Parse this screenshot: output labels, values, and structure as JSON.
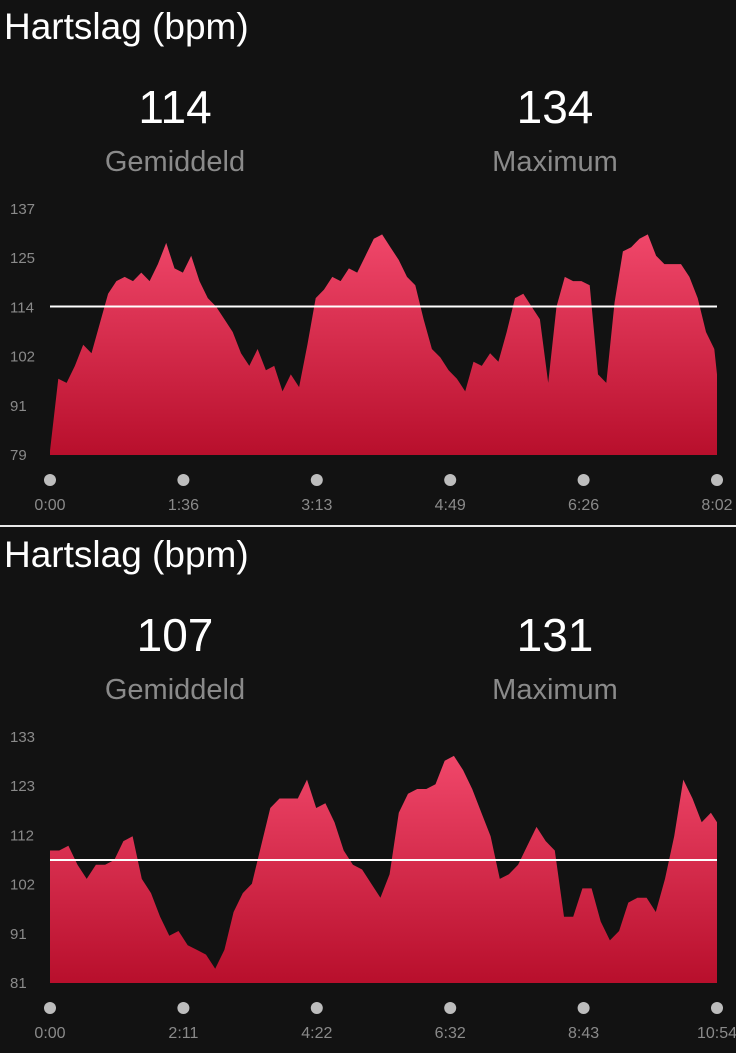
{
  "colors": {
    "fill_top": "#f0476a",
    "fill_bottom": "#b80f2c",
    "average_line": "#ffffff",
    "tick_text": "#8a8a8a",
    "marker": "#bdbdbd"
  },
  "panels": [
    {
      "title": "Hartslag (bpm)",
      "average": {
        "value": "114",
        "label": "Gemiddeld"
      },
      "maximum": {
        "value": "134",
        "label": "Maximum"
      }
    },
    {
      "title": "Hartslag (bpm)",
      "average": {
        "value": "107",
        "label": "Gemiddeld"
      },
      "maximum": {
        "value": "131",
        "label": "Maximum"
      }
    }
  ],
  "chart_data": [
    {
      "type": "area",
      "title": "Hartslag (bpm)",
      "x_unit": "minutes",
      "xlim": [
        0,
        8.033
      ],
      "ylim": [
        79,
        137
      ],
      "y_ticks": [
        "137",
        "125",
        "114",
        "102",
        "91",
        "79"
      ],
      "x_ticks": [
        "0:00",
        "1:36",
        "3:13",
        "4:49",
        "6:26",
        "8:02"
      ],
      "average_line": 114,
      "grid": false,
      "series": [
        {
          "x": [
            0.0,
            0.1,
            0.2,
            0.3,
            0.4,
            0.5,
            0.6,
            0.7,
            0.8,
            0.9,
            1.0,
            1.1,
            1.2,
            1.3,
            1.4,
            1.5,
            1.6,
            1.7,
            1.8,
            1.9,
            2.0,
            2.1,
            2.2,
            2.3,
            2.4,
            2.5,
            2.6,
            2.7,
            2.8,
            2.9,
            3.0,
            3.1,
            3.2,
            3.3,
            3.4,
            3.5,
            3.6,
            3.7,
            3.8,
            3.9,
            4.0,
            4.1,
            4.2,
            4.3,
            4.4,
            4.5,
            4.6,
            4.7,
            4.8,
            4.9,
            5.0,
            5.1,
            5.2,
            5.3,
            5.4,
            5.5,
            5.6,
            5.7,
            5.8,
            5.9,
            6.0,
            6.1,
            6.2,
            6.3,
            6.4,
            6.5,
            6.6,
            6.7,
            6.8,
            6.9,
            7.0,
            7.1,
            7.2,
            7.3,
            7.4,
            7.5,
            7.6,
            7.7,
            7.8,
            7.9,
            8.0,
            8.033
          ],
          "y": [
            80,
            97,
            96,
            100,
            105,
            103,
            110,
            117,
            120,
            121,
            120,
            122,
            120,
            124,
            129,
            123,
            122,
            126,
            120,
            116,
            114,
            111,
            108,
            103,
            100,
            104,
            99,
            100,
            94,
            98,
            95,
            105,
            116,
            118,
            121,
            120,
            123,
            122,
            126,
            130,
            131,
            128,
            125,
            121,
            119,
            111,
            104,
            102,
            99,
            97,
            94,
            101,
            100,
            103,
            101,
            108,
            116,
            117,
            114,
            111,
            96,
            114,
            121,
            120,
            120,
            119,
            98,
            96,
            115,
            127,
            128,
            130,
            131,
            126,
            124,
            124,
            124,
            121,
            116,
            108,
            104,
            98
          ]
        }
      ]
    },
    {
      "type": "area",
      "title": "Hartslag (bpm)",
      "x_unit": "minutes",
      "xlim": [
        0,
        10.9
      ],
      "ylim": [
        81,
        133
      ],
      "y_ticks": [
        "133",
        "123",
        "112",
        "102",
        "91",
        "81"
      ],
      "x_ticks": [
        "0:00",
        "2:11",
        "4:22",
        "6:32",
        "8:43",
        "10:54"
      ],
      "average_line": 107,
      "grid": false,
      "series": [
        {
          "x": [
            0.0,
            0.15,
            0.3,
            0.45,
            0.6,
            0.75,
            0.9,
            1.05,
            1.2,
            1.35,
            1.5,
            1.65,
            1.8,
            1.95,
            2.1,
            2.25,
            2.4,
            2.55,
            2.7,
            2.85,
            3.0,
            3.15,
            3.3,
            3.45,
            3.6,
            3.75,
            3.9,
            4.05,
            4.2,
            4.35,
            4.5,
            4.65,
            4.8,
            4.95,
            5.1,
            5.25,
            5.4,
            5.55,
            5.7,
            5.85,
            6.0,
            6.15,
            6.3,
            6.45,
            6.6,
            6.75,
            6.9,
            7.05,
            7.2,
            7.35,
            7.5,
            7.65,
            7.8,
            7.95,
            8.1,
            8.25,
            8.4,
            8.55,
            8.7,
            8.85,
            9.0,
            9.15,
            9.3,
            9.45,
            9.6,
            9.75,
            9.9,
            10.05,
            10.2,
            10.35,
            10.5,
            10.65,
            10.8,
            10.9
          ],
          "y": [
            109,
            109,
            110,
            106,
            103,
            106,
            106,
            107,
            111,
            112,
            103,
            100,
            95,
            91,
            92,
            89,
            88,
            87,
            84,
            88,
            96,
            100,
            102,
            110,
            118,
            120,
            120,
            120,
            124,
            118,
            119,
            115,
            109,
            106,
            105,
            102,
            99,
            104,
            117,
            121,
            122,
            122,
            123,
            128,
            129,
            126,
            122,
            117,
            112,
            103,
            104,
            106,
            110,
            114,
            111,
            109,
            95,
            95,
            101,
            101,
            94,
            90,
            92,
            98,
            99,
            99,
            96,
            103,
            112,
            124,
            120,
            115,
            117,
            115
          ]
        }
      ]
    }
  ]
}
